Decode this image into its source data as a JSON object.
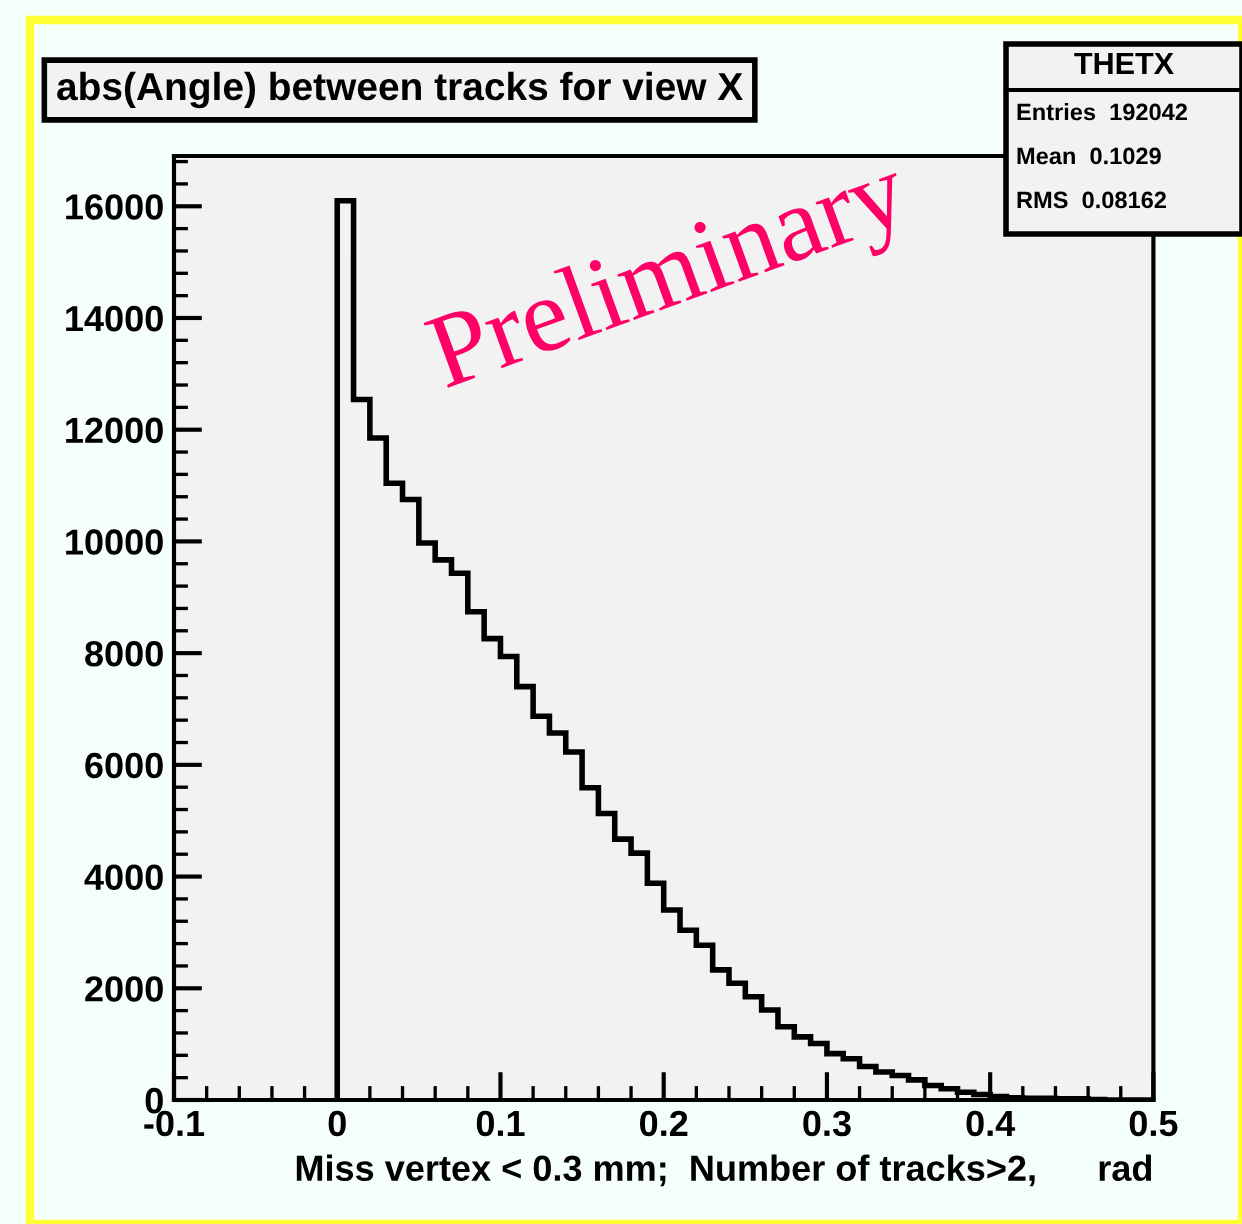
{
  "chart_data": {
    "type": "histogram",
    "title": "abs(Angle) between tracks for view X",
    "xlabel": "Miss vertex < 0.3 mm;  Number of tracks>2,      rad",
    "bins": [
      0,
      0.01,
      0.02,
      0.03,
      0.04,
      0.05,
      0.06,
      0.07,
      0.08,
      0.09,
      0.1,
      0.11,
      0.12,
      0.13,
      0.14,
      0.15,
      0.16,
      0.17,
      0.18,
      0.19,
      0.2,
      0.21,
      0.22,
      0.23,
      0.24,
      0.25,
      0.26,
      0.27,
      0.28,
      0.29,
      0.3,
      0.31,
      0.32,
      0.33,
      0.34,
      0.35,
      0.36,
      0.37,
      0.38,
      0.39,
      0.4,
      0.41,
      0.42,
      0.43,
      0.44,
      0.45,
      0.46,
      0.47,
      0.48,
      0.49,
      0.5
    ],
    "values": [
      16100,
      12540,
      11850,
      11040,
      10750,
      9970,
      9670,
      9430,
      8740,
      8260,
      7940,
      7400,
      6870,
      6570,
      6230,
      5590,
      5130,
      4670,
      4420,
      3880,
      3400,
      3040,
      2770,
      2330,
      2090,
      1850,
      1610,
      1310,
      1130,
      1010,
      830,
      740,
      600,
      500,
      440,
      360,
      260,
      200,
      140,
      100,
      60,
      40,
      30,
      30,
      20,
      20,
      10,
      0,
      0,
      0
    ],
    "color": "#000000",
    "xlim": [
      -0.1,
      0.5
    ],
    "xticks": [
      -0.1,
      0,
      0.1,
      0.2,
      0.3,
      0.4,
      0.5
    ],
    "ylim": [
      0,
      16900
    ],
    "yticks": [
      0,
      2000,
      4000,
      6000,
      8000,
      10000,
      12000,
      14000,
      16000
    ],
    "grid": false,
    "annotations": [
      "Preliminary",
      "THETX",
      "Entries  192042",
      "Mean  0.1029",
      "RMS  0.08162"
    ]
  }
}
